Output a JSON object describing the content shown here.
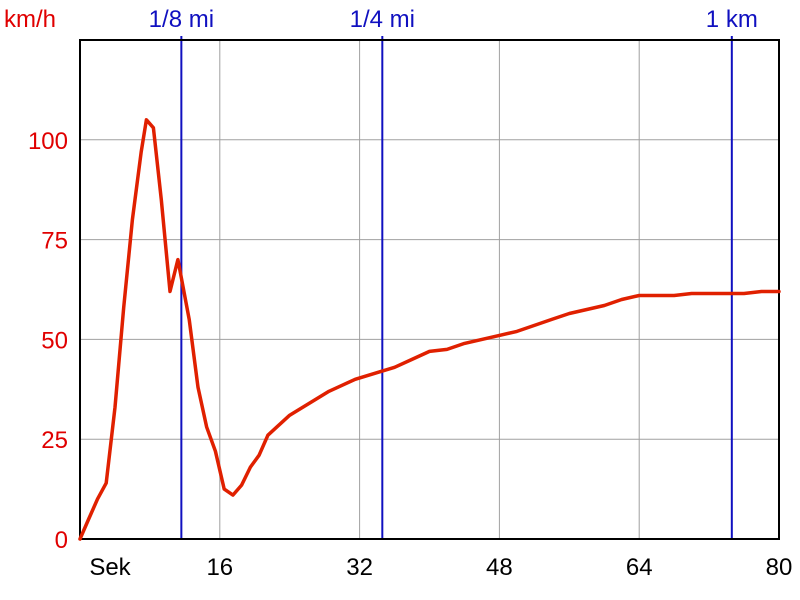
{
  "chart_data": {
    "type": "line",
    "y_unit_label": "km/h",
    "x_unit_label": "Sek",
    "xlim": [
      0,
      80
    ],
    "ylim": [
      0,
      125
    ],
    "xticks": [
      16,
      32,
      48,
      64,
      80
    ],
    "yticks": [
      0,
      25,
      50,
      75,
      100
    ],
    "grid": true,
    "colors": {
      "line": "#e02000",
      "grid": "#a0a0a0",
      "marker": "#1010c0",
      "ytick": "#e00000"
    },
    "markers": [
      {
        "label": "1/8 mi",
        "x": 11.6
      },
      {
        "label": "1/4 mi",
        "x": 34.6
      },
      {
        "label": "1 km",
        "x": 74.6
      }
    ],
    "series": [
      {
        "x": [
          0,
          1,
          2,
          3,
          4,
          5,
          6,
          7,
          7.6,
          8.4,
          9.3,
          10.3,
          11.2,
          12.5,
          13.5,
          14.5,
          15.5,
          16.5,
          17.5,
          18.5,
          19.5,
          20.5,
          21.5,
          22.5,
          24,
          25.5,
          27,
          28.5,
          30,
          31.5,
          33,
          34.5,
          36,
          38,
          40,
          42,
          44,
          46,
          48,
          50,
          52,
          54,
          56,
          58,
          60,
          62,
          64,
          66,
          68,
          70,
          72,
          74,
          76,
          78,
          80
        ],
        "y": [
          0,
          5,
          10,
          14,
          33,
          58,
          80,
          97,
          105,
          103,
          85,
          62,
          70,
          55,
          38,
          28,
          22,
          12.5,
          11,
          13.5,
          18,
          21,
          26,
          28,
          31,
          33,
          35,
          37,
          38.5,
          40,
          41,
          42,
          43,
          45,
          47,
          47.5,
          49,
          50,
          51,
          52,
          53.5,
          55,
          56.5,
          57.5,
          58.5,
          60,
          61,
          61,
          61,
          61.5,
          61.5,
          61.5,
          61.5,
          62,
          62
        ]
      }
    ]
  }
}
